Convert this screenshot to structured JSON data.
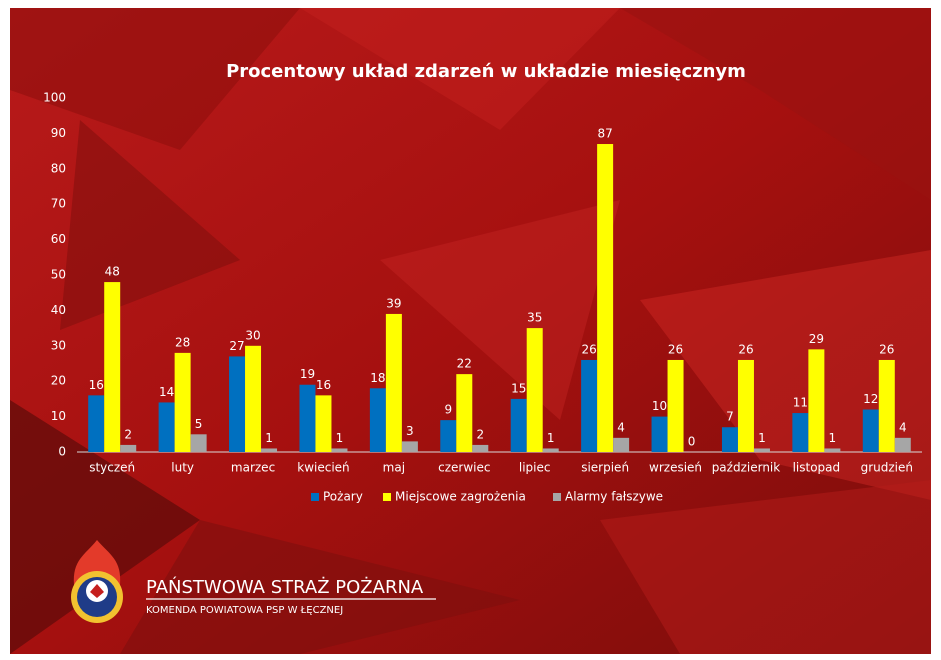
{
  "chart_data": {
    "type": "bar",
    "title": "Procentowy układ zdarzeń w układzie miesięcznym",
    "categories": [
      "styczeń",
      "luty",
      "marzec",
      "kwiecień",
      "maj",
      "czerwiec",
      "lipiec",
      "sierpień",
      "wrzesień",
      "październik",
      "listopad",
      "grudzień"
    ],
    "series": [
      {
        "name": "Pożary",
        "color": "#0070c0",
        "values": [
          16,
          14,
          27,
          19,
          18,
          9,
          15,
          26,
          10,
          7,
          11,
          12
        ]
      },
      {
        "name": "Miejscowe zagrożenia",
        "color": "#ffff00",
        "values": [
          48,
          28,
          30,
          16,
          39,
          22,
          35,
          87,
          26,
          26,
          29,
          26
        ]
      },
      {
        "name": "Alarmy fałszywe",
        "color": "#a6a6a6",
        "values": [
          2,
          5,
          1,
          1,
          3,
          2,
          1,
          4,
          0,
          1,
          1,
          4
        ]
      }
    ],
    "ylim": [
      0,
      100
    ],
    "yticks": [
      0,
      10,
      20,
      30,
      40,
      50,
      60,
      70,
      80,
      90,
      100
    ],
    "grid": false,
    "legend": "bottom"
  },
  "footer": {
    "organization": "PAŃSTWOWA STRAŻ POŻARNA",
    "unit": "KOMENDA POWIATOWA PSP W ŁĘCZNEJ"
  }
}
